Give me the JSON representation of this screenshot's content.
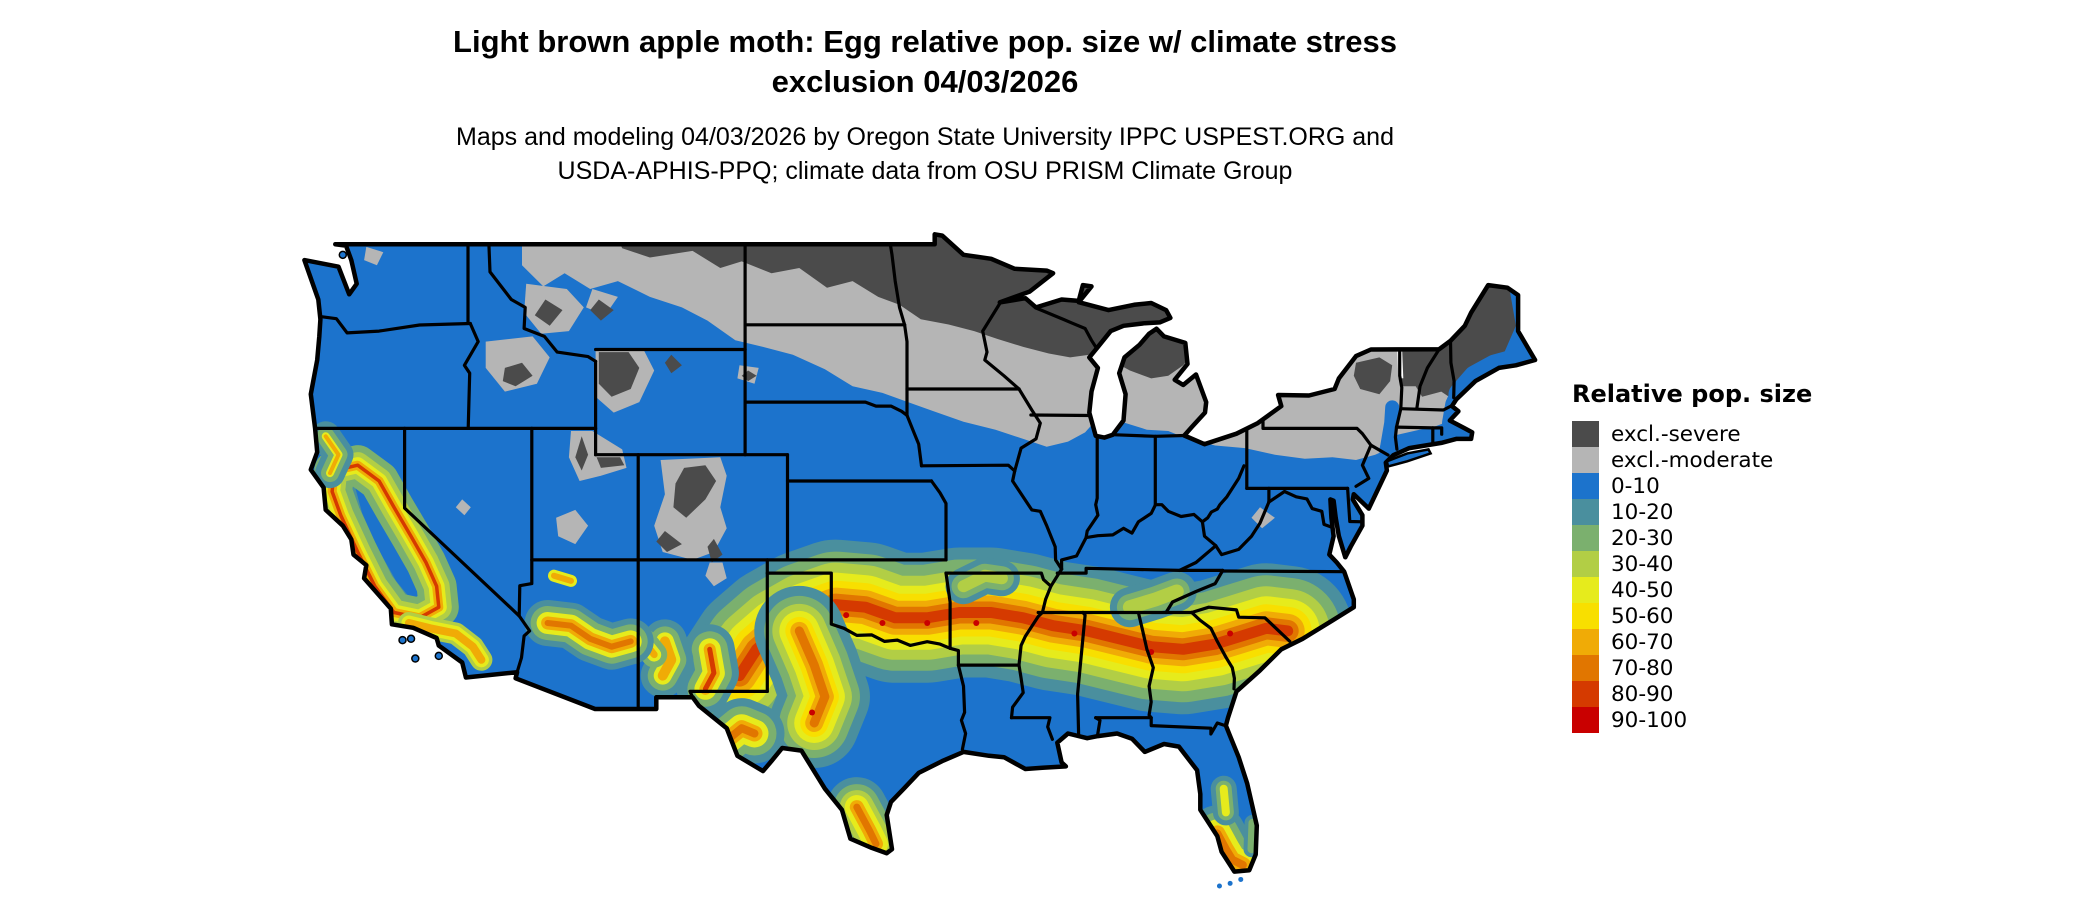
{
  "title": {
    "line1": "Light brown apple moth: Egg relative pop. size w/ climate stress",
    "line2": "exclusion 04/03/2026"
  },
  "subtitle": {
    "line1": "Maps and modeling 04/03/2026 by Oregon State University IPPC USPEST.ORG and",
    "line2": "USDA-APHIS-PPQ; climate data from OSU PRISM Climate Group"
  },
  "legend": {
    "title": "Relative pop. size",
    "items": [
      {
        "key": "excl-severe",
        "label": "excl.-severe",
        "color": "#4B4B4B"
      },
      {
        "key": "excl-moderate",
        "label": "excl.-moderate",
        "color": "#B5B5B5"
      },
      {
        "key": "0-10",
        "label": "0-10",
        "color": "#1C73CC"
      },
      {
        "key": "10-20",
        "label": "10-20",
        "color": "#4A8F9E"
      },
      {
        "key": "20-30",
        "label": "20-30",
        "color": "#7BB06E"
      },
      {
        "key": "30-40",
        "label": "30-40",
        "color": "#B2CE45"
      },
      {
        "key": "40-50",
        "label": "40-50",
        "color": "#E6EB1C"
      },
      {
        "key": "50-60",
        "label": "50-60",
        "color": "#F8DF00"
      },
      {
        "key": "60-70",
        "label": "60-70",
        "color": "#F0AB06"
      },
      {
        "key": "70-80",
        "label": "70-80",
        "color": "#E17600"
      },
      {
        "key": "80-90",
        "label": "80-90",
        "color": "#D53A00"
      },
      {
        "key": "90-100",
        "label": "90-100",
        "color": "#C90000"
      }
    ]
  },
  "map": {
    "description": "Continental United States choropleth of relative population size with climate stress exclusion",
    "background_color": "#FFFFFF",
    "state_border_color": "#000000",
    "base_class_key": "0-10"
  }
}
